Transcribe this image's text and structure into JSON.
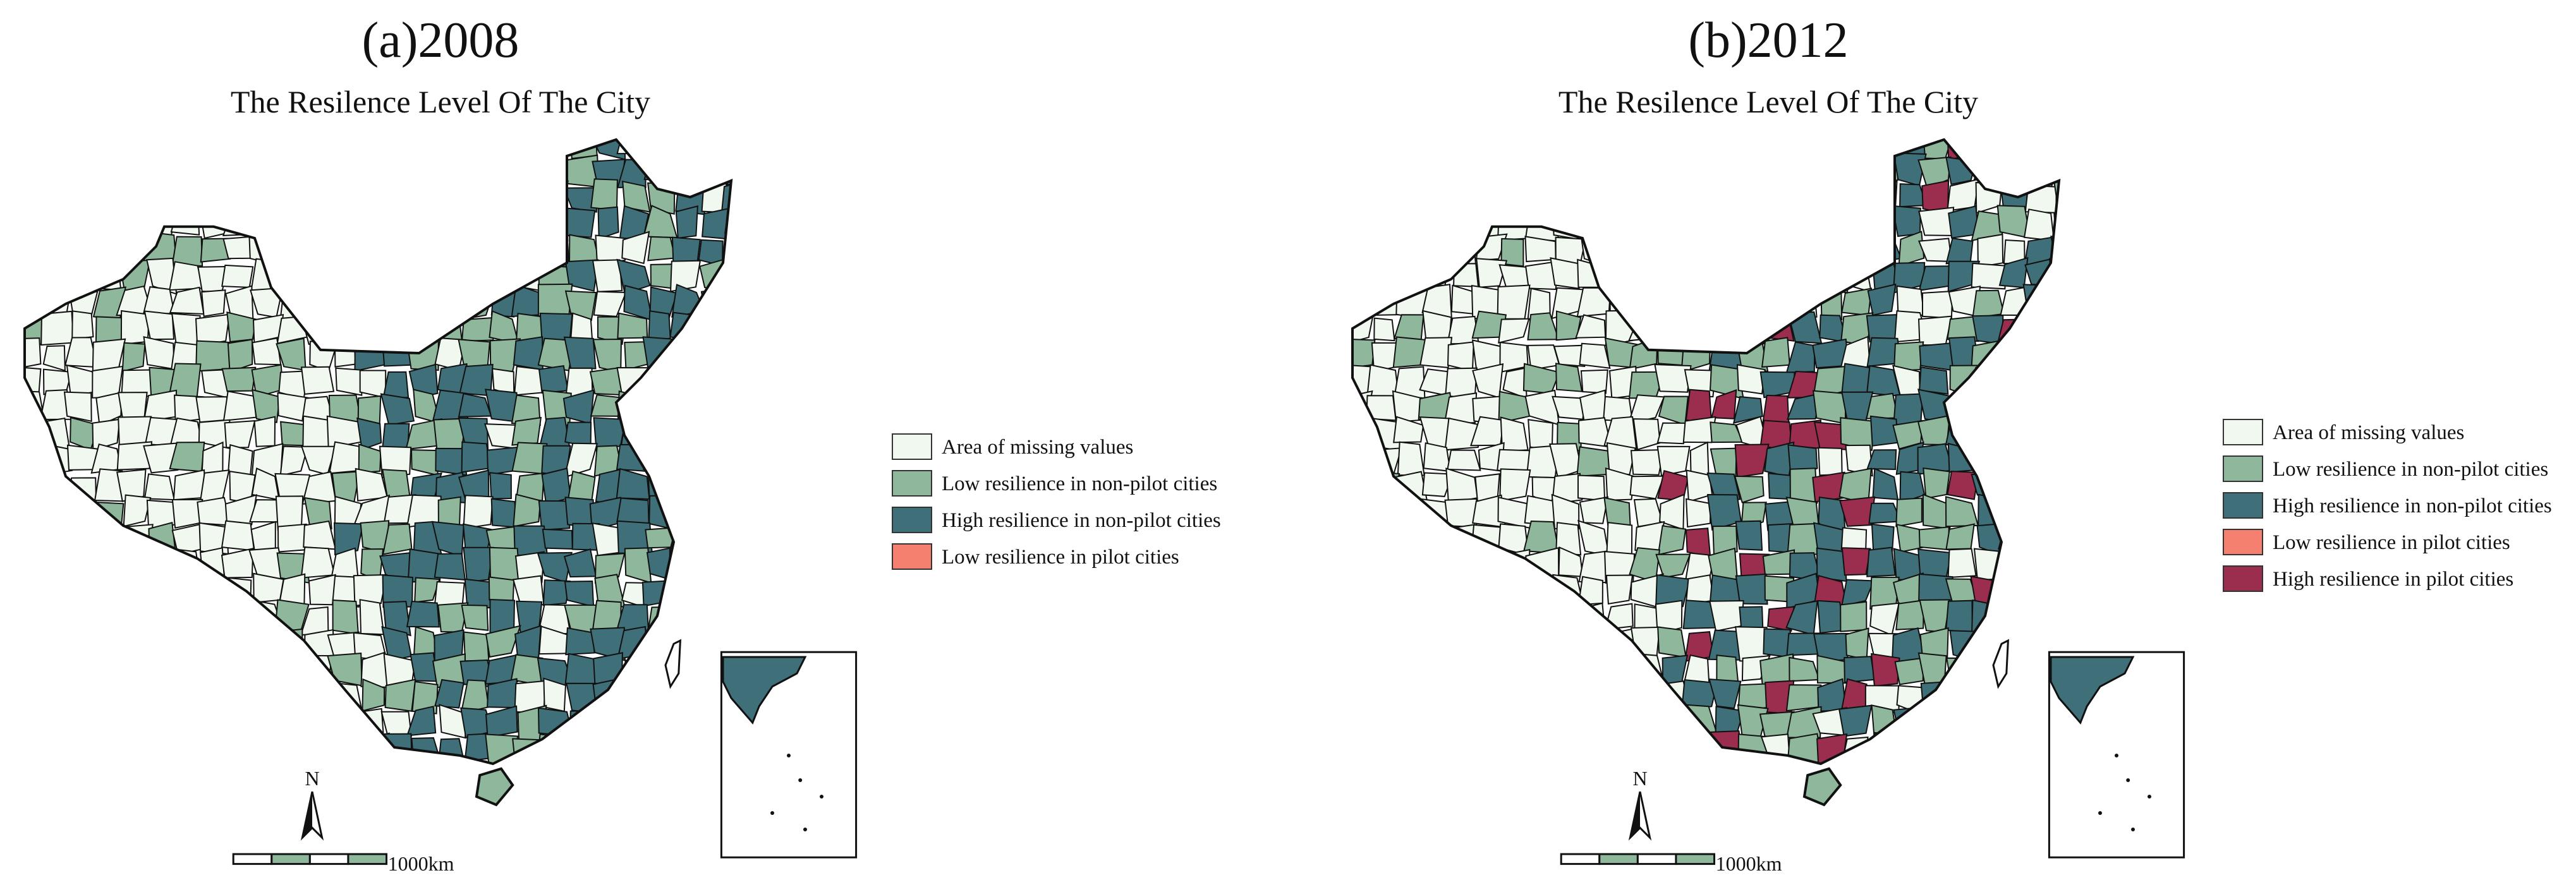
{
  "panels": [
    {
      "title": "(a)2008",
      "subtitle": "The Resilence Level Of The City",
      "legend": [
        {
          "label": "Area of missing values",
          "color": "#f1f8ef"
        },
        {
          "label": "Low resilience in non-pilot cities",
          "color": "#8fb79b"
        },
        {
          "label": "High resilience in non-pilot cities",
          "color": "#3f6f78"
        },
        {
          "label": "Low resilience in pilot cities",
          "color": "#f5806f"
        }
      ],
      "north": "N",
      "scale_label": "1000km"
    },
    {
      "title": "(b)2012",
      "subtitle": "The Resilence Level Of The City",
      "legend": [
        {
          "label": "Area of missing values",
          "color": "#f1f8ef"
        },
        {
          "label": "Low resilience in non-pilot cities",
          "color": "#8fb79b"
        },
        {
          "label": "High resilience in non-pilot cities",
          "color": "#3f6f78"
        },
        {
          "label": "Low resilience in pilot cities",
          "color": "#f5806f"
        },
        {
          "label": "High resilience in pilot cities",
          "color": "#9b2d4f"
        }
      ],
      "north": "N",
      "scale_label": "1000km"
    }
  ]
}
